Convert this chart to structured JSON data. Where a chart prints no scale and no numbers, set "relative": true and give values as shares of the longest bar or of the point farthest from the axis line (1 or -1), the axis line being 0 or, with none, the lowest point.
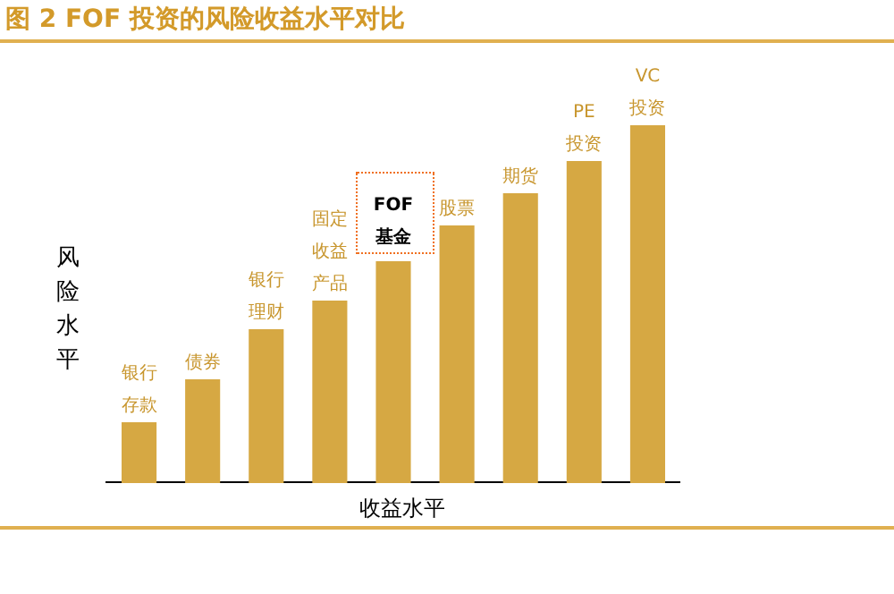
{
  "chart_data": {
    "type": "bar",
    "title": "图 2 FOF 投资的风险收益水平对比",
    "xlabel": "收益水平",
    "ylabel": "风险水平",
    "categories": [
      "银行存款",
      "债券",
      "银行理财",
      "固定收益产品",
      "FOF基金",
      "股票",
      "期货",
      "PE投资",
      "VC投资"
    ],
    "values": [
      0.17,
      0.29,
      0.43,
      0.51,
      0.62,
      0.72,
      0.81,
      0.9,
      1
    ],
    "color": "#d6a843",
    "relative": true
  }
}
